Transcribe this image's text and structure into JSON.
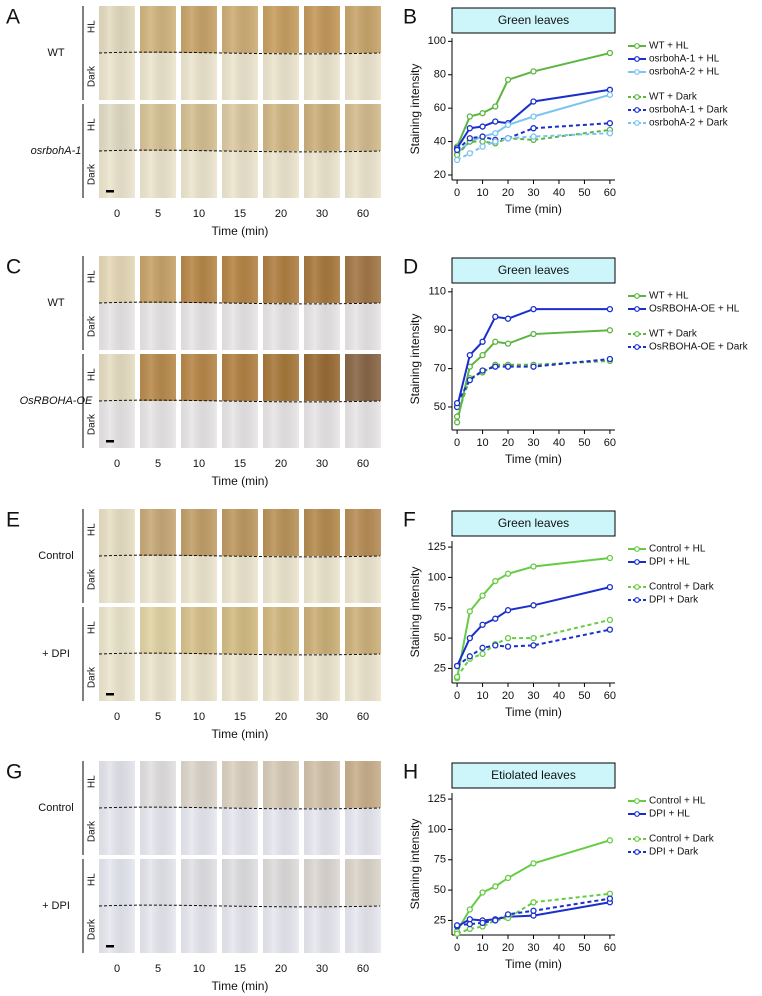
{
  "panels": [
    {
      "label": "A",
      "rows": [
        {
          "name": "WT",
          "top": "HL",
          "bottom": "Dark"
        },
        {
          "name": "osrbohA-1",
          "top": "HL",
          "bottom": "Dark"
        }
      ],
      "times": [
        0,
        5,
        10,
        15,
        20,
        30,
        60
      ],
      "xlabel": "Time (min)"
    },
    {
      "label": "C",
      "rows": [
        {
          "name": "WT",
          "top": "HL",
          "bottom": "Dark"
        },
        {
          "name": "OsRBOHA-OE",
          "top": "HL",
          "bottom": "Dark"
        }
      ],
      "times": [
        0,
        5,
        10,
        15,
        20,
        30,
        60
      ],
      "xlabel": "Time (min)"
    },
    {
      "label": "E",
      "rows": [
        {
          "name": "Control",
          "top": "HL",
          "bottom": "Dark"
        },
        {
          "name": "+ DPI",
          "top": "HL",
          "bottom": "Dark"
        }
      ],
      "times": [
        0,
        5,
        10,
        15,
        20,
        30,
        60
      ],
      "xlabel": "Time (min)"
    },
    {
      "label": "G",
      "rows": [
        {
          "name": "Control",
          "top": "HL",
          "bottom": "Dark"
        },
        {
          "name": "+ DPI",
          "top": "HL",
          "bottom": "Dark"
        }
      ],
      "times": [
        0,
        5,
        10,
        15,
        20,
        30,
        60
      ],
      "xlabel": "Time (min)"
    }
  ],
  "chart_data": [
    {
      "type": "line",
      "label": "B",
      "title": "Green leaves",
      "xlabel": "Time (min)",
      "ylabel": "Staining intensity",
      "x": [
        0,
        5,
        10,
        15,
        20,
        30,
        60
      ],
      "xlim": [
        -2,
        62
      ],
      "xticks": [
        0,
        10,
        20,
        30,
        40,
        50,
        60
      ],
      "ylim": [
        17,
        102
      ],
      "yticks": [
        20,
        40,
        60,
        80,
        100
      ],
      "series": [
        {
          "name": "WT + HL",
          "color": "#5cb540",
          "style": "solid",
          "values": [
            37,
            55,
            57,
            61,
            77,
            82,
            93
          ]
        },
        {
          "name": "osrbohA-1 + HL",
          "color": "#1a2fcc",
          "style": "solid",
          "values": [
            36,
            48,
            49,
            52,
            51,
            64,
            71
          ]
        },
        {
          "name": "osrbohA-2 + HL",
          "color": "#7cc4f0",
          "style": "solid",
          "values": [
            33,
            40,
            43,
            45,
            50,
            55,
            68
          ]
        },
        {
          "name": "WT + Dark",
          "color": "#5cb540",
          "style": "dashed",
          "values": [
            32,
            40,
            40,
            39,
            42,
            41,
            47
          ]
        },
        {
          "name": "osrbohA-1 + Dark",
          "color": "#1a2fcc",
          "style": "dashed",
          "values": [
            35,
            42,
            43,
            41,
            42,
            48,
            51
          ]
        },
        {
          "name": "osrbohA-2 + Dark",
          "color": "#7cc4f0",
          "style": "dashed",
          "values": [
            29,
            33,
            37,
            40,
            42,
            43,
            45
          ]
        }
      ]
    },
    {
      "type": "line",
      "label": "D",
      "title": "Green leaves",
      "xlabel": "Time (min)",
      "ylabel": "Staining intensity",
      "x": [
        0,
        5,
        10,
        15,
        20,
        30,
        60
      ],
      "xlim": [
        -2,
        62
      ],
      "xticks": [
        0,
        10,
        20,
        30,
        40,
        50,
        60
      ],
      "ylim": [
        38,
        112
      ],
      "yticks": [
        50,
        70,
        90,
        110
      ],
      "series": [
        {
          "name": "WT + HL",
          "color": "#5cb540",
          "style": "solid",
          "values": [
            42,
            71,
            77,
            84,
            83,
            88,
            90
          ]
        },
        {
          "name": "OsRBOHA-OE + HL",
          "color": "#1a2fcc",
          "style": "solid",
          "values": [
            50,
            77,
            84,
            97,
            96,
            101,
            101
          ]
        },
        {
          "name": "WT + Dark",
          "color": "#5cb540",
          "style": "dashed",
          "values": [
            45,
            65,
            68,
            72,
            72,
            72,
            74
          ]
        },
        {
          "name": "OsRBOHA-OE + Dark",
          "color": "#1a2fcc",
          "style": "dashed",
          "values": [
            52,
            64,
            69,
            71,
            71,
            71,
            75
          ]
        }
      ]
    },
    {
      "type": "line",
      "label": "F",
      "title": "Green leaves",
      "xlabel": "Time (min)",
      "ylabel": "Staining intensity",
      "x": [
        0,
        5,
        10,
        15,
        20,
        30,
        60
      ],
      "xlim": [
        -2,
        62
      ],
      "xticks": [
        0,
        10,
        20,
        30,
        40,
        50,
        60
      ],
      "ylim": [
        13,
        130
      ],
      "yticks": [
        25,
        50,
        75,
        100,
        125
      ],
      "series": [
        {
          "name": "Control + HL",
          "color": "#66cc44",
          "style": "solid",
          "values": [
            17,
            72,
            85,
            97,
            103,
            109,
            116
          ]
        },
        {
          "name": "DPI + HL",
          "color": "#1a2fcc",
          "style": "solid",
          "values": [
            27,
            50,
            61,
            66,
            73,
            77,
            92
          ]
        },
        {
          "name": "Control + Dark",
          "color": "#66cc44",
          "style": "dashed",
          "values": [
            18,
            33,
            37,
            45,
            50,
            50,
            65
          ]
        },
        {
          "name": "DPI + Dark",
          "color": "#1a2fcc",
          "style": "dashed",
          "values": [
            27,
            35,
            42,
            44,
            43,
            44,
            57
          ]
        }
      ]
    },
    {
      "type": "line",
      "label": "H",
      "title": "Etiolated leaves",
      "xlabel": "Time (min)",
      "ylabel": "Staining intensity",
      "x": [
        0,
        5,
        10,
        15,
        20,
        30,
        60
      ],
      "xlim": [
        -2,
        62
      ],
      "xticks": [
        0,
        10,
        20,
        30,
        40,
        50,
        60
      ],
      "ylim": [
        13,
        130
      ],
      "yticks": [
        25,
        50,
        75,
        100,
        125
      ],
      "series": [
        {
          "name": "Control + HL",
          "color": "#66cc44",
          "style": "solid",
          "values": [
            16,
            34,
            48,
            53,
            60,
            72,
            91
          ]
        },
        {
          "name": "DPI + HL",
          "color": "#1a2fcc",
          "style": "solid",
          "values": [
            20,
            26,
            25,
            26,
            28,
            29,
            40
          ]
        },
        {
          "name": "Control + Dark",
          "color": "#66cc44",
          "style": "dashed",
          "values": [
            14,
            18,
            20,
            25,
            27,
            40,
            47
          ]
        },
        {
          "name": "DPI + Dark",
          "color": "#1a2fcc",
          "style": "dashed",
          "values": [
            21,
            22,
            23,
            25,
            30,
            33,
            43
          ]
        }
      ]
    }
  ]
}
